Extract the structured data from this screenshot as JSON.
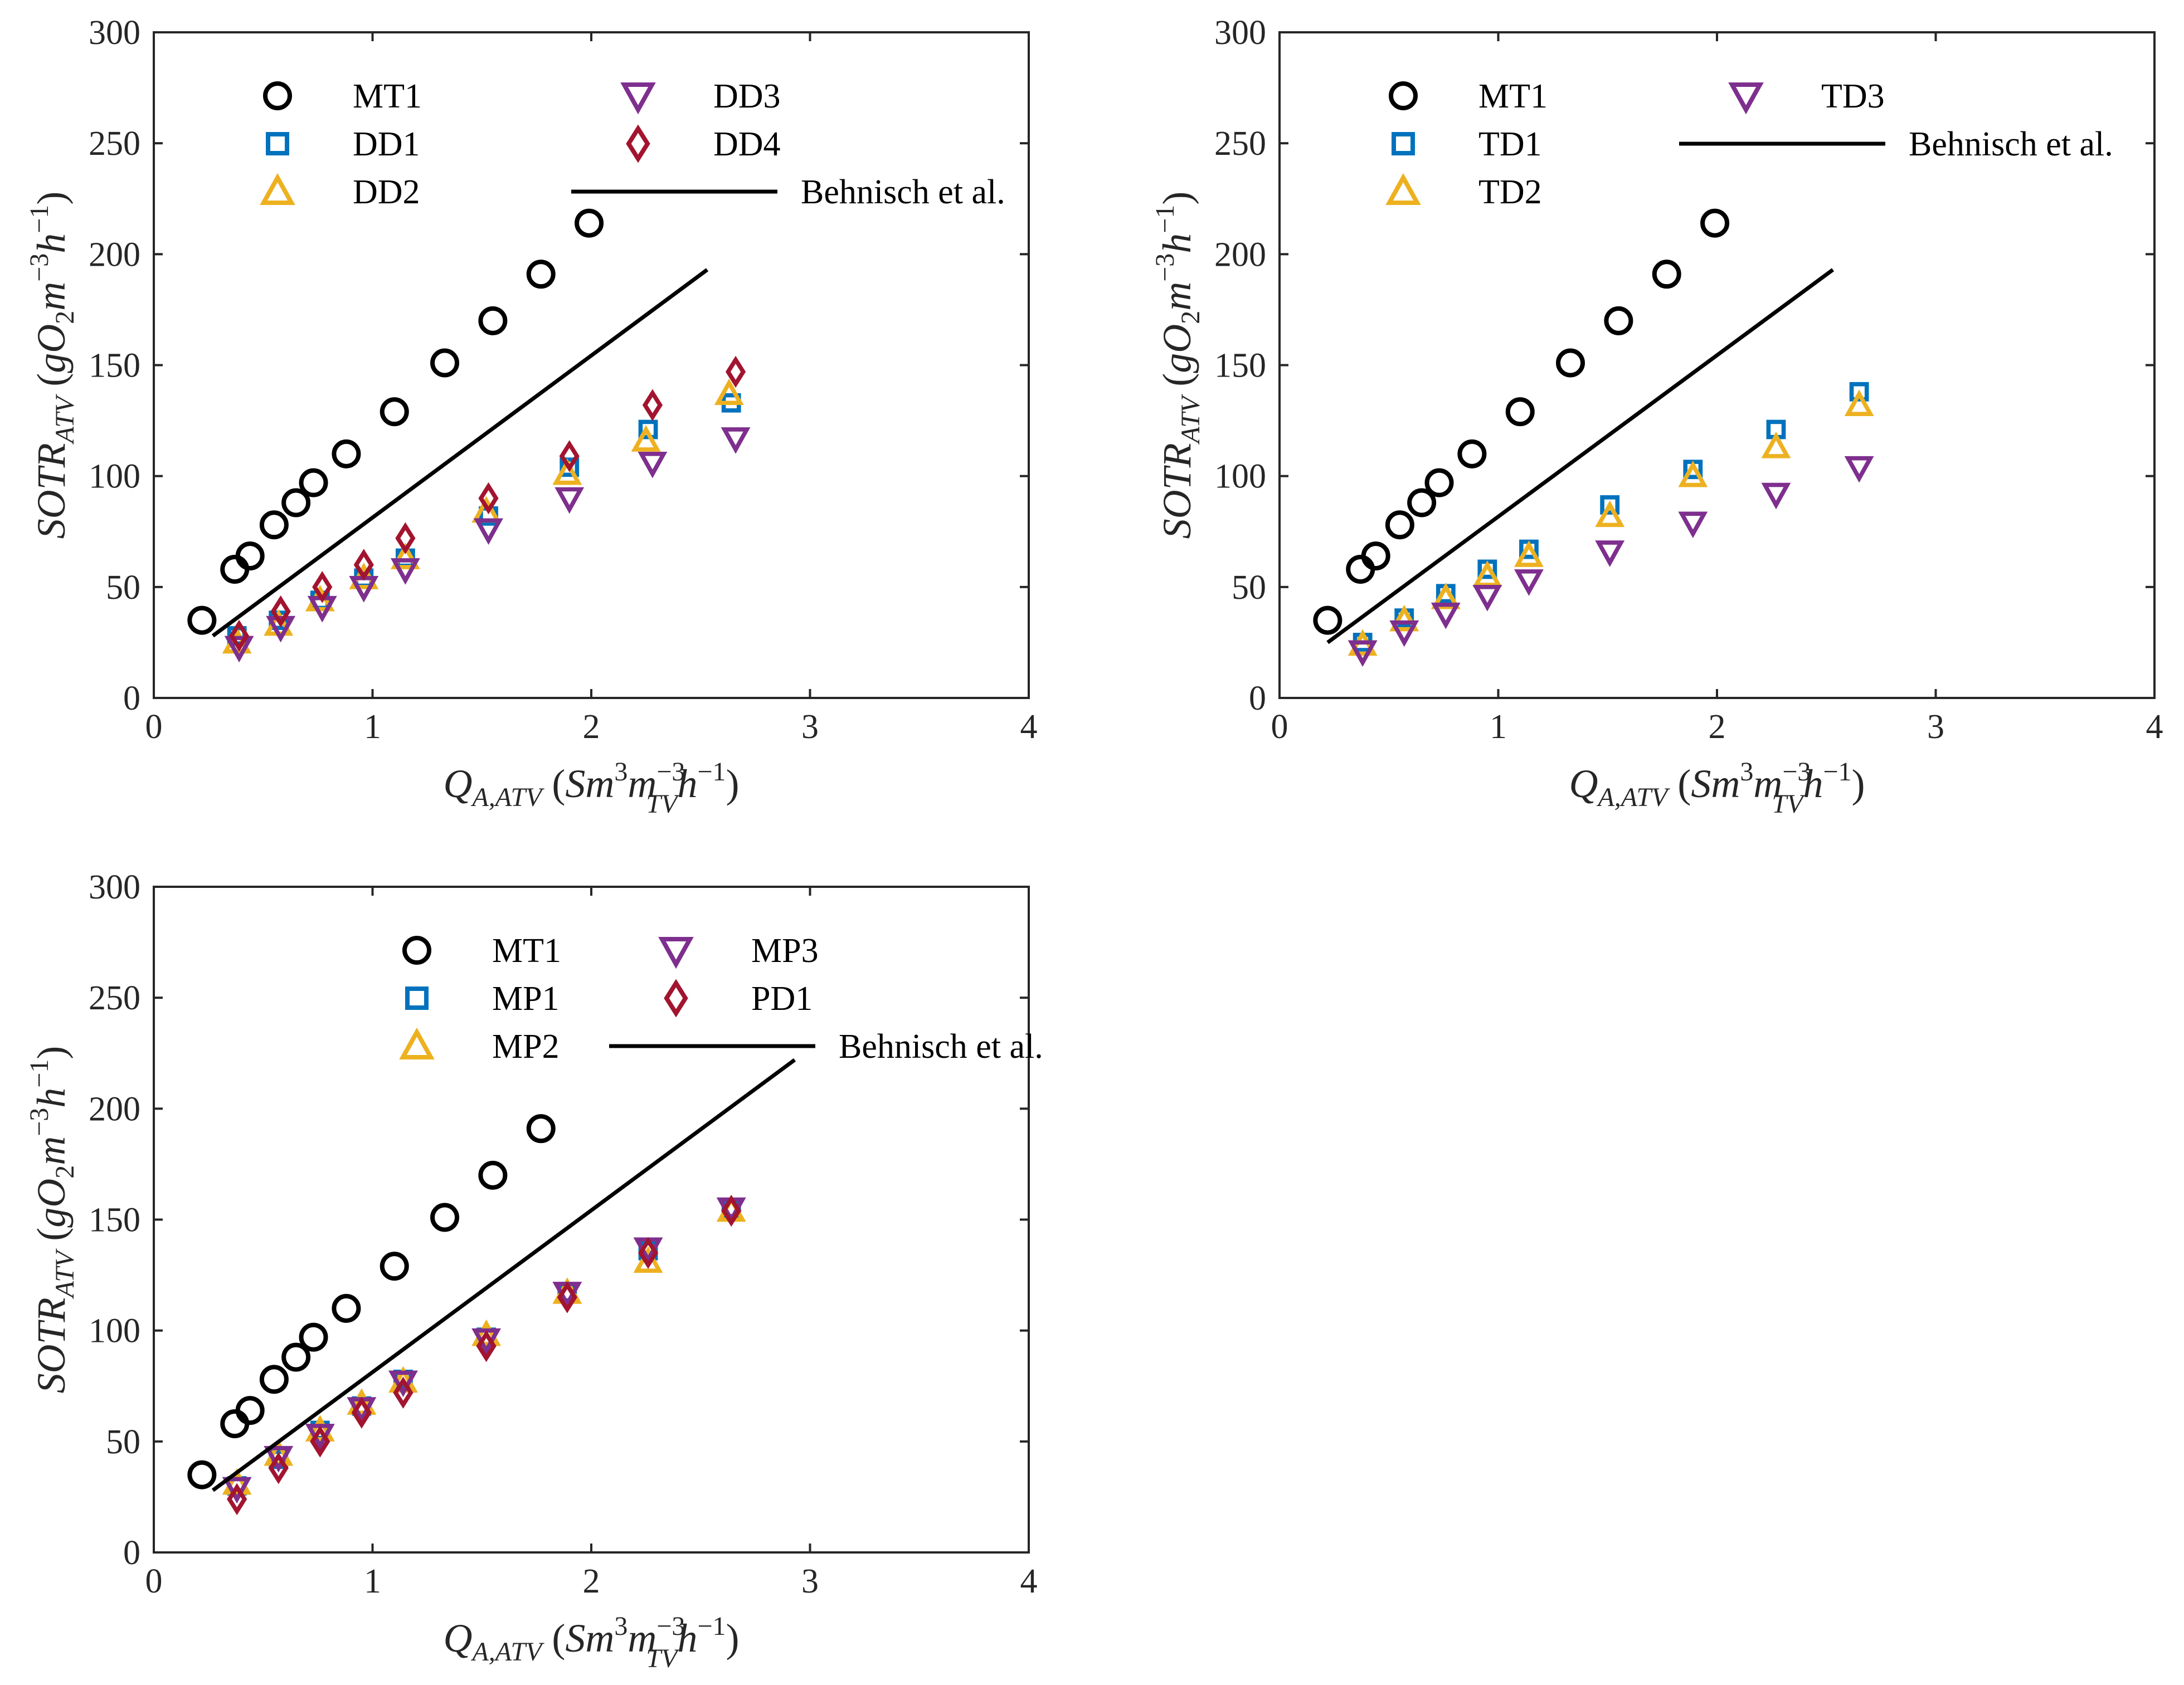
{
  "colors": {
    "MT": "#000000",
    "SQ": "#0072BD",
    "TRI_UP": "#EDB120",
    "TRI_DOWN": "#7E2F8E",
    "DIAMOND": "#A2142F",
    "LINE": "#000000",
    "AXIS": "#262626"
  },
  "chart_data": [
    {
      "type": "scatter",
      "xlabel": "Q_A,ATV (Sm^3 m_TV^-3 h^-1)",
      "ylabel": "SOTR_ATV (gO2 m^-3 h^-1)",
      "xlim": [
        0,
        4
      ],
      "ylim": [
        0,
        300
      ],
      "xticks": [
        "0",
        "1",
        "2",
        "3",
        "4"
      ],
      "yticks": [
        "0",
        "50",
        "100",
        "150",
        "200",
        "250",
        "300"
      ],
      "legend_position": "top-left",
      "legend_columns": 2,
      "series": [
        {
          "name": "MT1",
          "marker": "circle",
          "color_key": "MT",
          "x": [
            0.22,
            0.37,
            0.44,
            0.55,
            0.65,
            0.73,
            0.88,
            1.1,
            1.33,
            1.55,
            1.77,
            1.99
          ],
          "y": [
            35,
            58,
            64,
            78,
            88,
            97,
            110,
            129,
            151,
            170,
            191,
            214
          ]
        },
        {
          "name": "DD1",
          "marker": "square",
          "color_key": "SQ",
          "x": [
            0.38,
            0.57,
            0.76,
            0.96,
            1.15,
            1.53,
            1.9,
            2.26,
            2.64
          ],
          "y": [
            28,
            35,
            44,
            54,
            63,
            82,
            104,
            121,
            133
          ]
        },
        {
          "name": "DD2",
          "marker": "triangle-up",
          "color_key": "TRI_UP",
          "x": [
            0.38,
            0.57,
            0.76,
            0.96,
            1.15,
            1.52,
            1.89,
            2.25,
            2.63
          ],
          "y": [
            25,
            33,
            44,
            54,
            63,
            84,
            101,
            116,
            137
          ]
        },
        {
          "name": "DD3",
          "marker": "triangle-down",
          "color_key": "TRI_DOWN",
          "x": [
            0.39,
            0.58,
            0.77,
            0.96,
            1.15,
            1.53,
            1.9,
            2.28,
            2.66
          ],
          "y": [
            23,
            32,
            41,
            50,
            58,
            76,
            90,
            106,
            117
          ]
        },
        {
          "name": "DD4",
          "marker": "diamond",
          "color_key": "DIAMOND",
          "x": [
            0.39,
            0.58,
            0.77,
            0.96,
            1.15,
            1.53,
            1.9,
            2.28,
            2.66
          ],
          "y": [
            28,
            39,
            50,
            60,
            72,
            90,
            109,
            132,
            147
          ]
        },
        {
          "name": "Behnisch et al.",
          "marker": "line",
          "color_key": "LINE",
          "x": [
            0.27,
            2.53
          ],
          "y": [
            28,
            193
          ]
        }
      ]
    },
    {
      "type": "scatter",
      "xlabel": "Q_A,ATV (Sm^3 m_TV^-3 h^-1)",
      "ylabel": "SOTR_ATV (gO2 m^-3 h^-1)",
      "xlim": [
        0,
        4
      ],
      "ylim": [
        0,
        300
      ],
      "xticks": [
        "0",
        "1",
        "2",
        "3",
        "4"
      ],
      "yticks": [
        "0",
        "50",
        "100",
        "150",
        "200",
        "250",
        "300"
      ],
      "legend_position": "top-left",
      "legend_columns": 2,
      "series": [
        {
          "name": "MT1",
          "marker": "circle",
          "color_key": "MT",
          "x": [
            0.22,
            0.37,
            0.44,
            0.55,
            0.65,
            0.73,
            0.88,
            1.1,
            1.33,
            1.55,
            1.77,
            1.99
          ],
          "y": [
            35,
            58,
            64,
            78,
            88,
            97,
            110,
            129,
            151,
            170,
            191,
            214
          ]
        },
        {
          "name": "TD1",
          "marker": "square",
          "color_key": "SQ",
          "x": [
            0.38,
            0.57,
            0.76,
            0.95,
            1.14,
            1.51,
            1.89,
            2.27,
            2.65
          ],
          "y": [
            25,
            36,
            47,
            58,
            67,
            87,
            103,
            121,
            138
          ]
        },
        {
          "name": "TD2",
          "marker": "triangle-up",
          "color_key": "TRI_UP",
          "x": [
            0.38,
            0.57,
            0.76,
            0.95,
            1.14,
            1.51,
            1.89,
            2.27,
            2.65
          ],
          "y": [
            24,
            35,
            45,
            55,
            64,
            82,
            100,
            113,
            132
          ]
        },
        {
          "name": "TD3",
          "marker": "triangle-down",
          "color_key": "TRI_DOWN",
          "x": [
            0.38,
            0.57,
            0.76,
            0.95,
            1.14,
            1.51,
            1.89,
            2.27,
            2.65
          ],
          "y": [
            21,
            30,
            38,
            46,
            53,
            66,
            79,
            92,
            104
          ]
        },
        {
          "name": "Behnisch et al.",
          "marker": "line",
          "color_key": "LINE",
          "x": [
            0.22,
            2.53
          ],
          "y": [
            25,
            193
          ]
        }
      ]
    },
    {
      "type": "scatter",
      "xlabel": "Q_A,ATV (Sm^3 m_TV^-3 h^-1)",
      "ylabel": "SOTR_ATV (gO2 m^-3 h^-1)",
      "xlim": [
        0,
        4
      ],
      "ylim": [
        0,
        300
      ],
      "xticks": [
        "0",
        "1",
        "2",
        "3",
        "4"
      ],
      "yticks": [
        "0",
        "50",
        "100",
        "150",
        "200",
        "250",
        "300"
      ],
      "legend_position": "top-center",
      "legend_columns": 2,
      "series": [
        {
          "name": "MT1",
          "marker": "circle",
          "color_key": "MT",
          "x": [
            0.22,
            0.37,
            0.44,
            0.55,
            0.65,
            0.73,
            0.88,
            1.1,
            1.33,
            1.55,
            1.77
          ],
          "y": [
            35,
            58,
            64,
            78,
            88,
            97,
            110,
            129,
            151,
            170,
            191
          ]
        },
        {
          "name": "MP1",
          "marker": "square",
          "color_key": "SQ",
          "x": [
            0.38,
            0.57,
            0.76,
            0.95,
            1.14,
            1.52,
            1.89,
            2.26,
            2.64
          ],
          "y": [
            30,
            42,
            55,
            66,
            78,
            97,
            117,
            136,
            155
          ]
        },
        {
          "name": "MP2",
          "marker": "triangle-up",
          "color_key": "TRI_UP",
          "x": [
            0.38,
            0.57,
            0.76,
            0.95,
            1.14,
            1.52,
            1.89,
            2.26,
            2.64
          ],
          "y": [
            31,
            44,
            55,
            67,
            77,
            98,
            117,
            131,
            154
          ]
        },
        {
          "name": "MP3",
          "marker": "triangle-down",
          "color_key": "TRI_DOWN",
          "x": [
            0.38,
            0.57,
            0.76,
            0.95,
            1.14,
            1.52,
            1.89,
            2.26,
            2.64
          ],
          "y": [
            29,
            43,
            53,
            65,
            77,
            96,
            117,
            137,
            155
          ]
        },
        {
          "name": "PD1",
          "marker": "diamond",
          "color_key": "DIAMOND",
          "x": [
            0.38,
            0.57,
            0.76,
            0.95,
            1.14,
            1.52,
            1.89,
            2.26,
            2.64
          ],
          "y": [
            24,
            38,
            50,
            63,
            72,
            93,
            115,
            135,
            154
          ]
        },
        {
          "name": "Behnisch et al.",
          "marker": "line",
          "color_key": "LINE",
          "x": [
            0.27,
            2.93
          ],
          "y": [
            28,
            222
          ]
        }
      ]
    }
  ]
}
